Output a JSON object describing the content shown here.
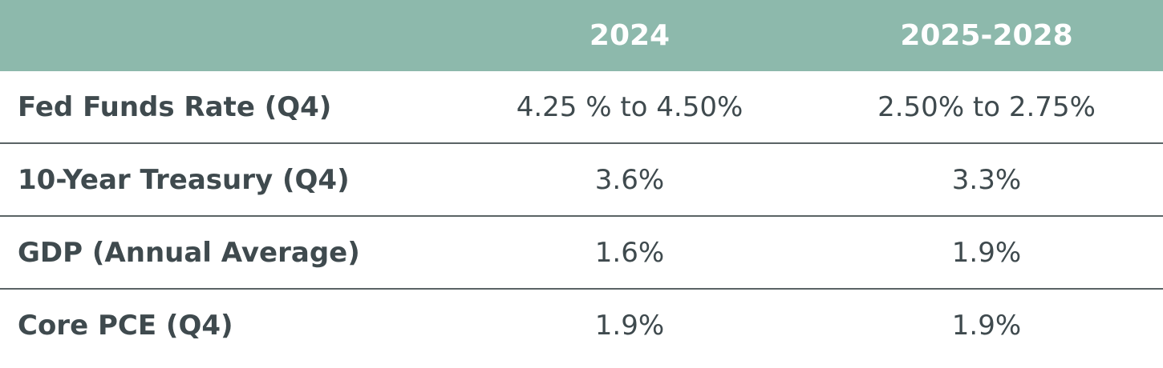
{
  "table": {
    "header": [
      "2024",
      "2025-2028"
    ],
    "rows": [
      [
        "Fed Funds Rate (Q4)",
        "4.25 % to 4.50%",
        "2.50% to 2.75%"
      ],
      [
        "10-Year Treasury (Q4)",
        "3.6%",
        "3.3%"
      ],
      [
        "GDP (Annual Average)",
        "1.6%",
        "1.9%"
      ],
      [
        "Core PCE (Q4)",
        "1.9%",
        "1.9%"
      ]
    ]
  }
}
